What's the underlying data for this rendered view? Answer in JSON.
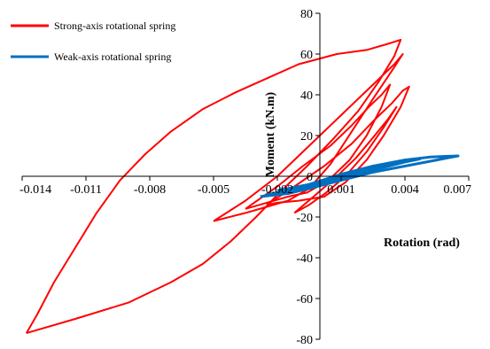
{
  "chart_data": {
    "type": "line",
    "title": "",
    "xlabel": "Rotation (rad)",
    "ylabel": "Moment (kN.m)",
    "xlim": [
      -0.014,
      0.007
    ],
    "ylim": [
      -80,
      80
    ],
    "x_ticks": [
      "-0.014",
      "-0.011",
      "-0.008",
      "-0.005",
      "-0.002",
      "0.001",
      "0.004",
      "0.007"
    ],
    "y_ticks": [
      "80",
      "60",
      "40",
      "20",
      "0",
      "-20",
      "-40",
      "-60",
      "-80"
    ],
    "grid": false,
    "legend_position": "top-left",
    "series": [
      {
        "name": "Strong-axis rotational spring",
        "color": "#ff0000",
        "loops": [
          [
            [
              -0.0138,
              -77
            ],
            [
              -0.0115,
              -70
            ],
            [
              -0.009,
              -62
            ],
            [
              -0.007,
              -52
            ],
            [
              -0.0055,
              -43
            ],
            [
              -0.0042,
              -32
            ],
            [
              -0.003,
              -20
            ],
            [
              -0.0018,
              -7
            ],
            [
              -0.0006,
              5
            ],
            [
              0.0006,
              18
            ],
            [
              0.0018,
              32
            ],
            [
              0.0028,
              47
            ],
            [
              0.0035,
              59
            ],
            [
              0.0038,
              67
            ],
            [
              0.0032,
              65
            ],
            [
              0.0022,
              62
            ],
            [
              0.0008,
              60
            ],
            [
              -0.001,
              55
            ],
            [
              -0.0025,
              48
            ],
            [
              -0.004,
              41
            ],
            [
              -0.0055,
              33
            ],
            [
              -0.007,
              22
            ],
            [
              -0.0082,
              11
            ],
            [
              -0.0094,
              -2
            ],
            [
              -0.0105,
              -18
            ],
            [
              -0.0115,
              -35
            ],
            [
              -0.0125,
              -52
            ],
            [
              -0.0133,
              -68
            ],
            [
              -0.0138,
              -77
            ]
          ],
          [
            [
              -0.005,
              -22
            ],
            [
              -0.0035,
              -12
            ],
            [
              -0.002,
              0
            ],
            [
              -0.0005,
              15
            ],
            [
              0.001,
              30
            ],
            [
              0.0025,
              45
            ],
            [
              0.0035,
              55
            ],
            [
              0.0039,
              60
            ],
            [
              0.0034,
              52
            ],
            [
              0.0025,
              38
            ],
            [
              0.0015,
              22
            ],
            [
              0.0005,
              6
            ],
            [
              -0.0005,
              -6
            ],
            [
              -0.0015,
              -12
            ],
            [
              -0.0025,
              -15
            ],
            [
              -0.0035,
              -18
            ],
            [
              -0.005,
              -22
            ]
          ],
          [
            [
              -0.0035,
              -16
            ],
            [
              -0.002,
              -5
            ],
            [
              -0.0008,
              5
            ],
            [
              0.0005,
              15
            ],
            [
              0.0015,
              25
            ],
            [
              0.0023,
              34
            ],
            [
              0.0029,
              40
            ],
            [
              0.0033,
              45
            ],
            [
              0.0029,
              34
            ],
            [
              0.0022,
              20
            ],
            [
              0.0014,
              8
            ],
            [
              0.0004,
              -2
            ],
            [
              -0.0006,
              -8
            ],
            [
              -0.0015,
              -10
            ],
            [
              -0.0025,
              -13
            ],
            [
              -0.0035,
              -16
            ]
          ],
          [
            [
              -0.0025,
              -14
            ],
            [
              -0.0012,
              -5
            ],
            [
              0.0002,
              5
            ],
            [
              0.0015,
              16
            ],
            [
              0.0026,
              28
            ],
            [
              0.0034,
              36
            ],
            [
              0.0039,
              42
            ],
            [
              0.0042,
              44
            ],
            [
              0.0038,
              34
            ],
            [
              0.003,
              20
            ],
            [
              0.0022,
              8
            ],
            [
              0.0012,
              -3
            ],
            [
              0.0002,
              -10
            ],
            [
              -0.001,
              -12
            ],
            [
              -0.002,
              -13
            ],
            [
              -0.0025,
              -14
            ]
          ],
          [
            [
              -0.0012,
              -18
            ],
            [
              -0.0003,
              -10
            ],
            [
              0.0007,
              -1
            ],
            [
              0.0017,
              9
            ],
            [
              0.0025,
              19
            ],
            [
              0.0032,
              28
            ],
            [
              0.0036,
              34
            ],
            [
              0.003,
              24
            ],
            [
              0.0022,
              12
            ],
            [
              0.0012,
              0
            ],
            [
              0.0003,
              -8
            ],
            [
              -0.0005,
              -14
            ],
            [
              -0.0012,
              -18
            ]
          ]
        ]
      },
      {
        "name": "Weak-axis rotational spring",
        "color": "#0070c0",
        "loops": [
          [
            [
              -0.0028,
              -10
            ],
            [
              -0.0018,
              -8
            ],
            [
              -0.0005,
              -4
            ],
            [
              0.001,
              1
            ],
            [
              0.0025,
              5
            ],
            [
              0.004,
              8
            ],
            [
              0.0052,
              9.5
            ],
            [
              0.0065,
              10
            ],
            [
              0.0055,
              8
            ],
            [
              0.004,
              5
            ],
            [
              0.0025,
              2
            ],
            [
              0.001,
              -2
            ],
            [
              -0.0005,
              -6
            ],
            [
              -0.0015,
              -8.5
            ],
            [
              -0.0028,
              -10
            ]
          ],
          [
            [
              -0.0025,
              -9
            ],
            [
              -0.001,
              -6
            ],
            [
              0.0005,
              -2
            ],
            [
              0.002,
              2
            ],
            [
              0.0035,
              6
            ],
            [
              0.0047,
              8.5
            ],
            [
              0.004,
              7
            ],
            [
              0.0025,
              3
            ],
            [
              0.001,
              -1
            ],
            [
              -0.0005,
              -5
            ],
            [
              -0.0015,
              -7.5
            ],
            [
              -0.0025,
              -9
            ]
          ],
          [
            [
              -0.002,
              -7
            ],
            [
              -0.0005,
              -4
            ],
            [
              0.001,
              0
            ],
            [
              0.0025,
              4
            ],
            [
              0.004,
              7.5
            ],
            [
              0.003,
              5
            ],
            [
              0.0015,
              1
            ],
            [
              0,
              -3
            ],
            [
              -0.001,
              -5.5
            ],
            [
              -0.002,
              -7
            ]
          ]
        ]
      }
    ]
  }
}
